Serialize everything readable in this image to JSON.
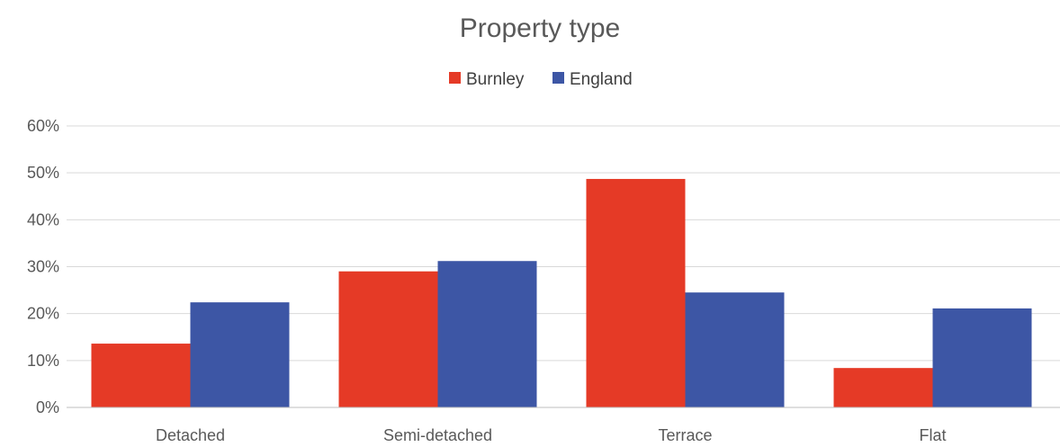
{
  "chart_data": {
    "type": "bar",
    "title": "Property type",
    "categories": [
      "Detached",
      "Semi-detached",
      "Terrace",
      "Flat"
    ],
    "series": [
      {
        "name": "Burnley",
        "color": "#e53a26",
        "values": [
          13.6,
          29.0,
          48.7,
          8.4
        ]
      },
      {
        "name": "England",
        "color": "#3d56a5",
        "values": [
          22.4,
          31.2,
          24.5,
          21.1
        ]
      }
    ],
    "ylim": [
      0,
      60
    ],
    "yticks": [
      0,
      10,
      20,
      30,
      40,
      50,
      60
    ],
    "ytick_labels": [
      "0%",
      "10%",
      "20%",
      "30%",
      "40%",
      "50%",
      "60%"
    ],
    "grid": true,
    "legend_position": "top-center",
    "xlabel": "",
    "ylabel": ""
  }
}
